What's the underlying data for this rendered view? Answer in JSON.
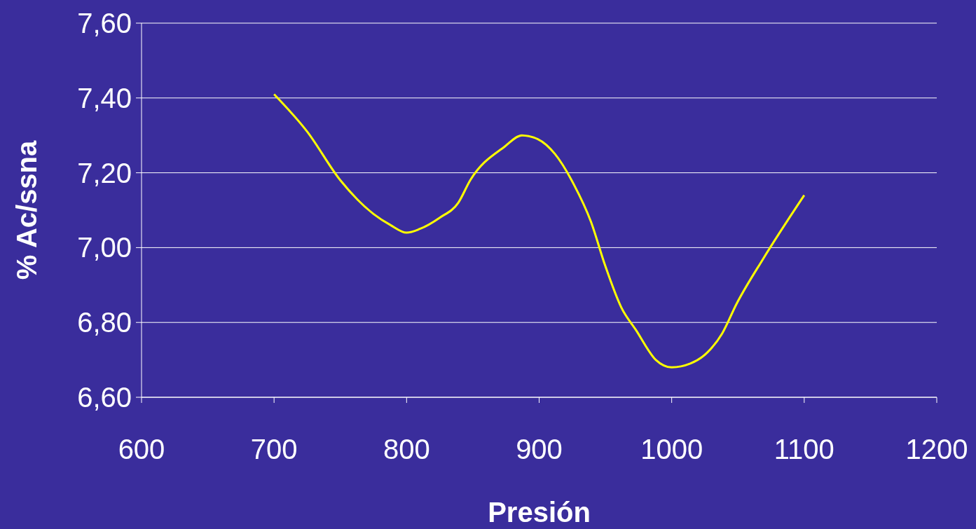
{
  "chart_data": {
    "type": "line",
    "xlabel": "Presión",
    "ylabel": "% Ac/ssna",
    "xlim": [
      600,
      1200
    ],
    "xticks": [
      600,
      700,
      800,
      900,
      1000,
      1100,
      1200
    ],
    "ylim": [
      6.6,
      7.6
    ],
    "yticks": [
      {
        "value": 6.6,
        "label": "6,60"
      },
      {
        "value": 6.8,
        "label": "6,80"
      },
      {
        "value": 7.0,
        "label": "7,00"
      },
      {
        "value": 7.2,
        "label": "7,20"
      },
      {
        "value": 7.4,
        "label": "7,40"
      },
      {
        "value": 7.6,
        "label": "7,60"
      }
    ],
    "grid": "y",
    "marker": "none",
    "line_style": "solid",
    "series": [
      {
        "color": "#ffff00",
        "x": [
          700,
          725,
          750,
          775,
          788,
          800,
          810,
          825,
          839,
          848,
          874,
          887,
          899,
          912,
          926,
          939,
          950,
          962,
          973,
          988,
          1000,
          1014,
          1027,
          1038,
          1049,
          1069,
          1100
        ],
        "values": [
          7.41,
          7.31,
          7.18,
          7.09,
          7.06,
          7.04,
          7.05,
          7.08,
          7.12,
          7.18,
          7.27,
          7.3,
          7.29,
          7.25,
          7.17,
          7.07,
          6.95,
          6.84,
          6.78,
          6.7,
          6.68,
          6.69,
          6.72,
          6.77,
          6.85,
          6.97,
          7.14
        ]
      }
    ]
  }
}
